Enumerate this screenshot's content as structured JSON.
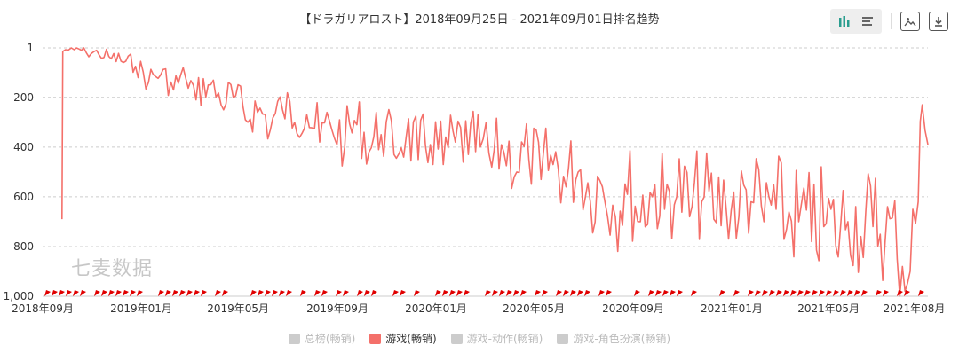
{
  "title": "【ドラガリアロスト】2018年09月25日 - 2021年09月01日排名趋势",
  "watermark": "七麦数据",
  "toolbar": {
    "icons": [
      "bar-chart-icon",
      "list-icon",
      "image-icon",
      "download-icon"
    ]
  },
  "colors": {
    "series": "#f4706a",
    "marker": "#e00000",
    "grid": "#cccccc",
    "axis_text": "#333333",
    "legend_inactive": "#cccccc"
  },
  "legend": [
    {
      "label": "总榜(畅销)",
      "active": false
    },
    {
      "label": "游戏(畅销)",
      "active": true
    },
    {
      "label": "游戏-动作(畅销)",
      "active": false
    },
    {
      "label": "游戏-角色扮演(畅销)",
      "active": false
    }
  ],
  "chart_data": {
    "type": "line",
    "title": "【ドラガリアロスト】2018年09月25日 - 2021年09月01日排名趋势",
    "xlabel": "",
    "ylabel": "",
    "y_inverted": true,
    "ylim": [
      1,
      1000
    ],
    "yticks": [
      1,
      200,
      400,
      600,
      800,
      "1,000"
    ],
    "x_tick_labels": [
      "2018年09月",
      "2019年01月",
      "2019年05月",
      "2019年09月",
      "2020年01月",
      "2020年05月",
      "2020年09月",
      "2021年01月",
      "2021年05月",
      "2021年08月"
    ],
    "grid": true,
    "legend_position": "bottom",
    "series": [
      {
        "name": "游戏(畅销)",
        "points": [
          [
            "2018-09-25",
            690
          ],
          [
            "2018-09-26",
            15
          ],
          [
            "2018-10-10",
            8
          ],
          [
            "2018-10-25",
            20
          ],
          [
            "2018-11-10",
            30
          ],
          [
            "2018-11-25",
            45
          ],
          [
            "2018-12-10",
            60
          ],
          [
            "2018-12-25",
            75
          ],
          [
            "2019-01-10",
            140
          ],
          [
            "2019-01-25",
            110
          ],
          [
            "2019-02-10",
            170
          ],
          [
            "2019-02-25",
            120
          ],
          [
            "2019-03-10",
            210
          ],
          [
            "2019-03-25",
            150
          ],
          [
            "2019-04-10",
            230
          ],
          [
            "2019-04-25",
            200
          ],
          [
            "2019-05-10",
            290
          ],
          [
            "2019-05-25",
            260
          ],
          [
            "2019-06-10",
            330
          ],
          [
            "2019-06-25",
            250
          ],
          [
            "2019-07-10",
            300
          ],
          [
            "2019-07-25",
            270
          ],
          [
            "2019-08-10",
            380
          ],
          [
            "2019-08-25",
            330
          ],
          [
            "2019-09-10",
            400
          ],
          [
            "2019-09-25",
            310
          ],
          [
            "2019-10-10",
            420
          ],
          [
            "2019-10-25",
            350
          ],
          [
            "2019-11-10",
            430
          ],
          [
            "2019-11-25",
            360
          ],
          [
            "2019-12-10",
            450
          ],
          [
            "2019-12-25",
            390
          ],
          [
            "2020-01-10",
            470
          ],
          [
            "2020-01-25",
            380
          ],
          [
            "2020-02-10",
            430
          ],
          [
            "2020-02-25",
            400
          ],
          [
            "2020-03-10",
            480
          ],
          [
            "2020-03-25",
            420
          ],
          [
            "2020-04-10",
            500
          ],
          [
            "2020-04-25",
            450
          ],
          [
            "2020-05-10",
            530
          ],
          [
            "2020-05-25",
            470
          ],
          [
            "2020-06-10",
            560
          ],
          [
            "2020-06-25",
            500
          ],
          [
            "2020-07-10",
            620
          ],
          [
            "2020-07-25",
            560
          ],
          [
            "2020-08-10",
            680
          ],
          [
            "2020-08-25",
            590
          ],
          [
            "2020-09-10",
            700
          ],
          [
            "2020-09-25",
            600
          ],
          [
            "2020-10-10",
            650
          ],
          [
            "2020-10-25",
            600
          ],
          [
            "2020-11-10",
            680
          ],
          [
            "2020-11-25",
            620
          ],
          [
            "2020-12-10",
            690
          ],
          [
            "2020-12-25",
            640
          ],
          [
            "2021-01-10",
            680
          ],
          [
            "2021-01-25",
            620
          ],
          [
            "2021-02-10",
            700
          ],
          [
            "2021-02-25",
            650
          ],
          [
            "2021-03-10",
            730
          ],
          [
            "2021-03-25",
            700
          ],
          [
            "2021-04-10",
            780
          ],
          [
            "2021-04-25",
            720
          ],
          [
            "2021-05-10",
            800
          ],
          [
            "2021-05-25",
            700
          ],
          [
            "2021-06-10",
            760
          ],
          [
            "2021-06-25",
            720
          ],
          [
            "2021-07-10",
            780
          ],
          [
            "2021-07-25",
            850
          ],
          [
            "2021-08-10",
            900
          ],
          [
            "2021-08-20",
            620
          ],
          [
            "2021-08-25",
            230
          ],
          [
            "2021-09-01",
            390
          ]
        ]
      }
    ]
  }
}
